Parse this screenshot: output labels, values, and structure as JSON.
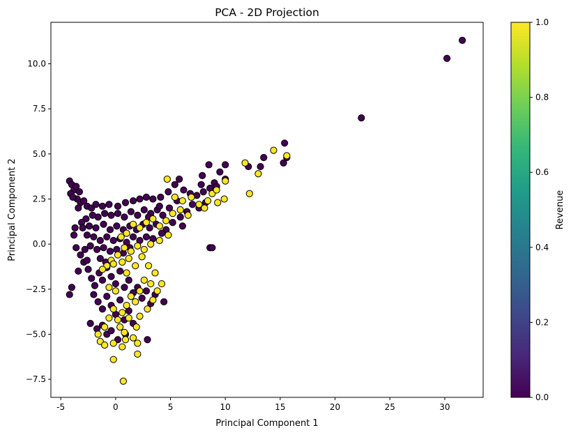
{
  "chart_data": {
    "type": "scatter",
    "title": "PCA - 2D Projection",
    "xlabel": "Principal Component 1",
    "ylabel": "Principal Component 2",
    "xlim": [
      -5.9,
      33.5
    ],
    "ylim": [
      -8.5,
      12.3
    ],
    "xticks": [
      -5,
      0,
      5,
      10,
      15,
      20,
      25,
      30
    ],
    "yticks": [
      -7.5,
      -5.0,
      -2.5,
      0.0,
      2.5,
      5.0,
      7.5,
      10.0
    ],
    "grid": false,
    "colorbar": {
      "label": "Revenue",
      "colormap": "viridis",
      "range": [
        0.0,
        1.0
      ],
      "ticks": [
        "0.0",
        "0.2",
        "0.4",
        "0.6",
        "0.8",
        "1.0"
      ],
      "stops": [
        "#440154",
        "#482878",
        "#3e4989",
        "#31688e",
        "#26828e",
        "#1f9e89",
        "#35b779",
        "#6ece58",
        "#b5de2b",
        "#fde725"
      ]
    },
    "marker": {
      "edge_color": "#000000",
      "class0_color": "#440154",
      "class1_color": "#fde725"
    },
    "series": [
      {
        "revenue": 0,
        "points": [
          [
            31.6,
            11.3
          ],
          [
            30.2,
            10.3
          ],
          [
            22.4,
            7.0
          ],
          [
            15.4,
            5.6
          ],
          [
            13.5,
            4.8
          ],
          [
            12.1,
            4.3
          ],
          [
            13.2,
            4.3
          ],
          [
            15.3,
            4.5
          ],
          [
            15.6,
            4.8
          ],
          [
            10.0,
            4.4
          ],
          [
            9.5,
            4.0
          ],
          [
            8.5,
            4.4
          ],
          [
            7.9,
            3.8
          ],
          [
            10.0,
            3.6
          ],
          [
            9.0,
            3.4
          ],
          [
            8.6,
            -0.2
          ],
          [
            8.8,
            -0.2
          ],
          [
            -4.2,
            3.5
          ],
          [
            -4.0,
            3.3
          ],
          [
            -3.8,
            3.0
          ],
          [
            -4.1,
            2.8
          ],
          [
            -3.6,
            3.2
          ],
          [
            -3.3,
            2.9
          ],
          [
            -3.5,
            2.5
          ],
          [
            -3.9,
            2.6
          ],
          [
            -3.2,
            2.3
          ],
          [
            -2.9,
            2.4
          ],
          [
            -3.4,
            2.0
          ],
          [
            -2.6,
            2.1
          ],
          [
            -2.2,
            2.0
          ],
          [
            -1.8,
            2.2
          ],
          [
            -1.2,
            2.1
          ],
          [
            -0.6,
            2.2
          ],
          [
            0.2,
            2.1
          ],
          [
            0.9,
            2.3
          ],
          [
            1.6,
            2.4
          ],
          [
            2.2,
            2.5
          ],
          [
            2.8,
            2.6
          ],
          [
            3.4,
            2.5
          ],
          [
            4.1,
            2.6
          ],
          [
            4.8,
            2.9
          ],
          [
            5.4,
            3.3
          ],
          [
            5.8,
            3.6
          ],
          [
            6.2,
            3.0
          ],
          [
            6.8,
            2.8
          ],
          [
            7.4,
            2.7
          ],
          [
            8.0,
            2.9
          ],
          [
            8.6,
            3.1
          ],
          [
            9.2,
            3.2
          ],
          [
            7.0,
            2.2
          ],
          [
            7.6,
            2.0
          ],
          [
            8.2,
            2.3
          ],
          [
            6.5,
            1.8
          ],
          [
            5.9,
            1.5
          ],
          [
            5.2,
            1.2
          ],
          [
            6.1,
            1.0
          ],
          [
            4.6,
            0.8
          ],
          [
            4.9,
            2.0
          ],
          [
            4.3,
            1.6
          ],
          [
            3.8,
            1.9
          ],
          [
            3.2,
            1.7
          ],
          [
            2.6,
            1.9
          ],
          [
            2.0,
            1.6
          ],
          [
            1.4,
            1.8
          ],
          [
            0.8,
            1.5
          ],
          [
            0.2,
            1.7
          ],
          [
            -0.4,
            1.6
          ],
          [
            -1.0,
            1.7
          ],
          [
            -1.6,
            1.5
          ],
          [
            -2.1,
            1.6
          ],
          [
            -2.7,
            1.4
          ],
          [
            -3.1,
            1.2
          ],
          [
            -2.4,
            1.0
          ],
          [
            -1.8,
            0.9
          ],
          [
            -1.1,
            1.1
          ],
          [
            -0.5,
            0.8
          ],
          [
            0.1,
            1.0
          ],
          [
            0.7,
            0.8
          ],
          [
            1.3,
            1.0
          ],
          [
            1.9,
            0.8
          ],
          [
            2.5,
            1.1
          ],
          [
            3.1,
            0.9
          ],
          [
            3.7,
            1.1
          ],
          [
            4.2,
            0.6
          ],
          [
            3.4,
            0.3
          ],
          [
            2.8,
            0.4
          ],
          [
            2.2,
            0.2
          ],
          [
            1.6,
            0.4
          ],
          [
            1.0,
            0.1
          ],
          [
            0.4,
            0.3
          ],
          [
            -0.2,
            0.2
          ],
          [
            -0.8,
            0.4
          ],
          [
            -1.4,
            0.2
          ],
          [
            -2.0,
            0.4
          ],
          [
            -2.6,
            0.5
          ],
          [
            -3.0,
            0.9
          ],
          [
            -3.7,
            0.9
          ],
          [
            -3.8,
            0.5
          ],
          [
            -3.6,
            -0.2
          ],
          [
            -3.2,
            -0.6
          ],
          [
            -2.8,
            -0.3
          ],
          [
            -2.3,
            -0.1
          ],
          [
            -1.7,
            -0.3
          ],
          [
            -1.1,
            -0.2
          ],
          [
            -0.5,
            -0.4
          ],
          [
            0.1,
            -0.3
          ],
          [
            0.7,
            -0.5
          ],
          [
            1.3,
            -0.2
          ],
          [
            -2.9,
            -1.0
          ],
          [
            -2.5,
            -1.4
          ],
          [
            -2.2,
            -1.9
          ],
          [
            -1.9,
            -2.3
          ],
          [
            -1.5,
            -1.6
          ],
          [
            -1.2,
            -2.0
          ],
          [
            -0.8,
            -1.3
          ],
          [
            -0.4,
            -1.8
          ],
          [
            0.0,
            -2.2
          ],
          [
            0.4,
            -1.5
          ],
          [
            0.8,
            -2.4
          ],
          [
            1.2,
            -2.0
          ],
          [
            1.6,
            -2.7
          ],
          [
            2.0,
            -2.4
          ],
          [
            2.4,
            -3.0
          ],
          [
            2.8,
            -2.6
          ],
          [
            3.2,
            -3.3
          ],
          [
            3.6,
            -2.8
          ],
          [
            4.4,
            -3.2
          ],
          [
            -2.0,
            -2.8
          ],
          [
            -1.6,
            -3.2
          ],
          [
            -1.2,
            -3.6
          ],
          [
            -0.8,
            -2.9
          ],
          [
            -0.4,
            -3.4
          ],
          [
            0.0,
            -3.9
          ],
          [
            0.4,
            -3.1
          ],
          [
            0.8,
            -4.2
          ],
          [
            1.2,
            -3.7
          ],
          [
            1.6,
            -4.4
          ],
          [
            -2.3,
            -4.4
          ],
          [
            -1.7,
            -4.7
          ],
          [
            -1.2,
            -4.5
          ],
          [
            -0.8,
            -5.0
          ],
          [
            -0.4,
            -4.8
          ],
          [
            0.2,
            -5.3
          ],
          [
            0.9,
            -5.0
          ],
          [
            2.9,
            -5.3
          ],
          [
            -4.2,
            -2.8
          ],
          [
            -4.0,
            -2.4
          ],
          [
            -3.4,
            -1.5
          ],
          [
            -2.6,
            -0.9
          ],
          [
            -1.4,
            -0.8
          ],
          [
            -0.9,
            -1.0
          ],
          [
            3.0,
            1.5
          ],
          [
            4.0,
            2.1
          ],
          [
            5.6,
            2.4
          ],
          [
            7.8,
            3.3
          ]
        ]
      },
      {
        "revenue": 1,
        "points": [
          [
            14.4,
            5.2
          ],
          [
            15.6,
            4.9
          ],
          [
            11.8,
            4.5
          ],
          [
            13.0,
            3.9
          ],
          [
            12.2,
            2.8
          ],
          [
            10.0,
            3.5
          ],
          [
            9.9,
            2.5
          ],
          [
            9.3,
            2.3
          ],
          [
            8.8,
            2.8
          ],
          [
            8.4,
            2.4
          ],
          [
            9.2,
            3.0
          ],
          [
            4.7,
            3.6
          ],
          [
            5.4,
            2.6
          ],
          [
            6.1,
            2.4
          ],
          [
            6.9,
            2.6
          ],
          [
            7.6,
            2.2
          ],
          [
            8.1,
            2.0
          ],
          [
            6.6,
            1.6
          ],
          [
            5.9,
            1.9
          ],
          [
            5.2,
            1.7
          ],
          [
            4.6,
            1.3
          ],
          [
            4.0,
            1.0
          ],
          [
            3.4,
            1.4
          ],
          [
            2.8,
            1.2
          ],
          [
            2.2,
            0.9
          ],
          [
            1.6,
            1.1
          ],
          [
            1.0,
            0.6
          ],
          [
            0.5,
            0.4
          ],
          [
            4.8,
            0.5
          ],
          [
            4.0,
            0.2
          ],
          [
            3.2,
            0.0
          ],
          [
            2.6,
            -0.3
          ],
          [
            2.0,
            -0.1
          ],
          [
            1.4,
            -0.4
          ],
          [
            0.8,
            -0.2
          ],
          [
            0.2,
            -0.6
          ],
          [
            -0.4,
            -0.9
          ],
          [
            -0.8,
            -1.2
          ],
          [
            -1.2,
            -1.4
          ],
          [
            -0.2,
            -1.1
          ],
          [
            0.6,
            -1.0
          ],
          [
            1.2,
            -0.8
          ],
          [
            1.8,
            -1.2
          ],
          [
            2.4,
            -0.7
          ],
          [
            3.0,
            -1.2
          ],
          [
            3.6,
            -1.6
          ],
          [
            4.2,
            -2.2
          ],
          [
            3.8,
            -2.6
          ],
          [
            3.2,
            -2.2
          ],
          [
            2.6,
            -2.0
          ],
          [
            2.2,
            -2.6
          ],
          [
            1.8,
            -3.2
          ],
          [
            1.4,
            -2.9
          ],
          [
            1.0,
            -3.4
          ],
          [
            0.6,
            -3.8
          ],
          [
            0.2,
            -4.2
          ],
          [
            -0.2,
            -3.6
          ],
          [
            -0.6,
            -4.1
          ],
          [
            -1.0,
            -4.6
          ],
          [
            0.4,
            -4.6
          ],
          [
            0.8,
            -4.9
          ],
          [
            1.2,
            -4.1
          ],
          [
            2.2,
            -4.0
          ],
          [
            2.9,
            -3.6
          ],
          [
            3.4,
            -3.1
          ],
          [
            -1.6,
            -5.0
          ],
          [
            -1.4,
            -5.4
          ],
          [
            -1.0,
            -5.6
          ],
          [
            -0.2,
            -5.5
          ],
          [
            0.6,
            -5.7
          ],
          [
            0.9,
            -5.3
          ],
          [
            1.6,
            -5.2
          ],
          [
            2.0,
            -5.5
          ],
          [
            2.0,
            -6.1
          ],
          [
            -0.2,
            -6.4
          ],
          [
            0.7,
            -7.6
          ],
          [
            1.9,
            -4.6
          ],
          [
            0.0,
            -2.6
          ],
          [
            -0.6,
            -2.4
          ],
          [
            1.0,
            -1.6
          ]
        ]
      }
    ]
  }
}
